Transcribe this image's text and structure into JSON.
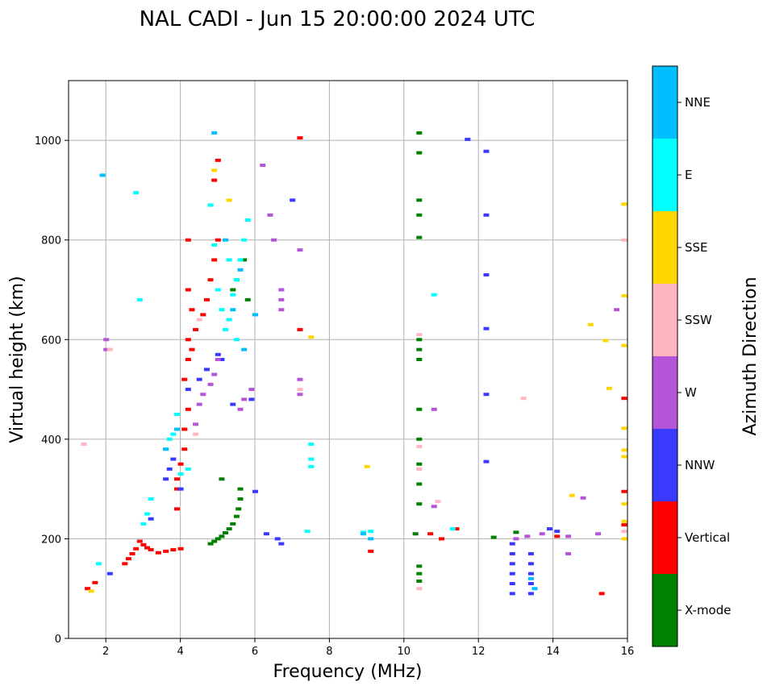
{
  "chart_data": {
    "type": "scatter",
    "title": "NAL CADI - Jun 15 20:00:00 2024 UTC",
    "xlabel": "Frequency (MHz)",
    "ylabel": "Virtual height (km)",
    "xlim": [
      1,
      16
    ],
    "ylim": [
      0,
      1120
    ],
    "xticks": [
      2,
      4,
      6,
      8,
      10,
      12,
      14,
      16
    ],
    "yticks": [
      0,
      200,
      400,
      600,
      800,
      1000
    ],
    "grid": true,
    "colorbar": {
      "label": "Azimuth Direction",
      "categories": [
        "X-mode",
        "Vertical",
        "NNW",
        "W",
        "SSW",
        "SSE",
        "E",
        "NNE"
      ],
      "colors": [
        "#008000",
        "#ff0000",
        "#3a3aff",
        "#b455d8",
        "#ffb6c1",
        "#ffd700",
        "#00ffff",
        "#00bfff"
      ]
    },
    "series": [
      {
        "name": "Vertical",
        "points": [
          [
            1.5,
            100
          ],
          [
            1.7,
            112
          ],
          [
            2.5,
            150
          ],
          [
            2.6,
            160
          ],
          [
            2.7,
            170
          ],
          [
            2.8,
            180
          ],
          [
            2.9,
            195
          ],
          [
            3.0,
            188
          ],
          [
            3.1,
            182
          ],
          [
            3.2,
            178
          ],
          [
            3.4,
            172
          ],
          [
            3.6,
            175
          ],
          [
            3.8,
            178
          ],
          [
            4.0,
            180
          ],
          [
            3.9,
            260
          ],
          [
            3.9,
            300
          ],
          [
            3.9,
            320
          ],
          [
            4.0,
            350
          ],
          [
            4.1,
            380
          ],
          [
            4.1,
            420
          ],
          [
            4.2,
            460
          ],
          [
            4.1,
            520
          ],
          [
            4.2,
            560
          ],
          [
            4.2,
            600
          ],
          [
            4.3,
            580
          ],
          [
            4.4,
            620
          ],
          [
            4.3,
            660
          ],
          [
            4.2,
            700
          ],
          [
            4.2,
            800
          ],
          [
            4.6,
            650
          ],
          [
            4.7,
            680
          ],
          [
            4.8,
            720
          ],
          [
            4.9,
            760
          ],
          [
            5.0,
            800
          ],
          [
            4.8,
            870
          ],
          [
            4.9,
            920
          ],
          [
            5.0,
            960
          ],
          [
            7.2,
            1005
          ],
          [
            7.2,
            620
          ],
          [
            9.1,
            175
          ],
          [
            10.7,
            210
          ],
          [
            11.4,
            220
          ],
          [
            11.0,
            200
          ],
          [
            14.1,
            205
          ],
          [
            15.3,
            90
          ],
          [
            15.9,
            295
          ],
          [
            15.9,
            482
          ],
          [
            15.9,
            228
          ]
        ]
      },
      {
        "name": "X-mode",
        "points": [
          [
            4.8,
            190
          ],
          [
            4.9,
            195
          ],
          [
            5.0,
            200
          ],
          [
            5.1,
            205
          ],
          [
            5.2,
            212
          ],
          [
            5.3,
            220
          ],
          [
            5.4,
            230
          ],
          [
            5.5,
            245
          ],
          [
            5.55,
            260
          ],
          [
            5.6,
            280
          ],
          [
            5.6,
            300
          ],
          [
            5.1,
            320
          ],
          [
            5.4,
            700
          ],
          [
            5.5,
            720
          ],
          [
            5.7,
            760
          ],
          [
            5.8,
            680
          ],
          [
            10.4,
            1015
          ],
          [
            10.4,
            975
          ],
          [
            10.4,
            880
          ],
          [
            10.4,
            850
          ],
          [
            10.4,
            805
          ],
          [
            10.4,
            600
          ],
          [
            10.4,
            580
          ],
          [
            10.4,
            560
          ],
          [
            10.4,
            460
          ],
          [
            10.4,
            400
          ],
          [
            10.4,
            350
          ],
          [
            10.4,
            310
          ],
          [
            10.4,
            270
          ],
          [
            10.3,
            210
          ],
          [
            10.4,
            145
          ],
          [
            10.4,
            130
          ],
          [
            10.4,
            115
          ],
          [
            12.4,
            203
          ],
          [
            13.0,
            213
          ]
        ]
      },
      {
        "name": "NNW",
        "points": [
          [
            2.1,
            130
          ],
          [
            3.2,
            240
          ],
          [
            3.6,
            320
          ],
          [
            3.7,
            340
          ],
          [
            3.8,
            360
          ],
          [
            4.0,
            300
          ],
          [
            4.2,
            500
          ],
          [
            4.5,
            520
          ],
          [
            4.7,
            540
          ],
          [
            5.0,
            570
          ],
          [
            5.1,
            560
          ],
          [
            5.4,
            470
          ],
          [
            5.9,
            480
          ],
          [
            6.0,
            295
          ],
          [
            6.3,
            210
          ],
          [
            6.6,
            200
          ],
          [
            6.7,
            190
          ],
          [
            7.0,
            880
          ],
          [
            11.7,
            1002
          ],
          [
            12.2,
            978
          ],
          [
            12.2,
            850
          ],
          [
            12.2,
            730
          ],
          [
            12.2,
            622
          ],
          [
            12.2,
            490
          ],
          [
            12.2,
            355
          ],
          [
            12.9,
            90
          ],
          [
            12.9,
            110
          ],
          [
            12.9,
            130
          ],
          [
            12.9,
            150
          ],
          [
            12.9,
            170
          ],
          [
            12.9,
            190
          ],
          [
            13.4,
            90
          ],
          [
            13.4,
            110
          ],
          [
            13.4,
            130
          ],
          [
            13.4,
            150
          ],
          [
            13.4,
            170
          ],
          [
            13.9,
            220
          ],
          [
            14.1,
            215
          ]
        ]
      },
      {
        "name": "W",
        "points": [
          [
            2.0,
            600
          ],
          [
            2.0,
            580
          ],
          [
            4.4,
            430
          ],
          [
            4.5,
            470
          ],
          [
            4.6,
            490
          ],
          [
            4.8,
            510
          ],
          [
            4.9,
            530
          ],
          [
            5.0,
            560
          ],
          [
            5.6,
            460
          ],
          [
            5.7,
            480
          ],
          [
            5.9,
            500
          ],
          [
            6.2,
            950
          ],
          [
            6.4,
            850
          ],
          [
            6.5,
            800
          ],
          [
            6.7,
            700
          ],
          [
            6.7,
            680
          ],
          [
            6.7,
            660
          ],
          [
            7.2,
            780
          ],
          [
            7.2,
            520
          ],
          [
            7.2,
            490
          ],
          [
            10.8,
            460
          ],
          [
            10.8,
            265
          ],
          [
            13.0,
            200
          ],
          [
            13.3,
            205
          ],
          [
            13.7,
            210
          ],
          [
            14.4,
            205
          ],
          [
            14.4,
            170
          ],
          [
            14.8,
            282
          ],
          [
            15.2,
            210
          ],
          [
            15.7,
            660
          ]
        ]
      },
      {
        "name": "SSW",
        "points": [
          [
            1.4,
            390
          ],
          [
            2.1,
            580
          ],
          [
            4.4,
            410
          ],
          [
            4.5,
            640
          ],
          [
            7.2,
            500
          ],
          [
            10.4,
            610
          ],
          [
            10.4,
            385
          ],
          [
            10.4,
            340
          ],
          [
            10.4,
            100
          ],
          [
            10.9,
            275
          ],
          [
            13.2,
            482
          ],
          [
            15.9,
            800
          ],
          [
            15.9,
            215
          ]
        ]
      },
      {
        "name": "SSE",
        "points": [
          [
            1.6,
            95
          ],
          [
            4.9,
            940
          ],
          [
            5.3,
            880
          ],
          [
            7.5,
            605
          ],
          [
            9.0,
            345
          ],
          [
            14.5,
            287
          ],
          [
            15.0,
            630
          ],
          [
            15.4,
            598
          ],
          [
            15.5,
            502
          ],
          [
            15.9,
            872
          ],
          [
            15.9,
            688
          ],
          [
            15.9,
            588
          ],
          [
            15.9,
            422
          ],
          [
            15.9,
            378
          ],
          [
            15.9,
            365
          ],
          [
            15.9,
            270
          ],
          [
            15.9,
            235
          ],
          [
            15.9,
            200
          ]
        ]
      },
      {
        "name": "E",
        "points": [
          [
            1.9,
            930
          ],
          [
            1.8,
            150
          ],
          [
            2.8,
            895
          ],
          [
            2.9,
            680
          ],
          [
            3.0,
            230
          ],
          [
            3.1,
            250
          ],
          [
            3.2,
            280
          ],
          [
            3.6,
            380
          ],
          [
            3.7,
            400
          ],
          [
            3.8,
            410
          ],
          [
            3.9,
            450
          ],
          [
            4.0,
            330
          ],
          [
            4.2,
            340
          ],
          [
            4.8,
            870
          ],
          [
            4.9,
            790
          ],
          [
            5.0,
            700
          ],
          [
            5.1,
            660
          ],
          [
            5.2,
            620
          ],
          [
            5.3,
            640
          ],
          [
            5.4,
            690
          ],
          [
            5.5,
            720
          ],
          [
            5.6,
            760
          ],
          [
            5.7,
            800
          ],
          [
            5.8,
            840
          ],
          [
            5.3,
            760
          ],
          [
            5.5,
            600
          ],
          [
            7.4,
            215
          ],
          [
            7.5,
            390
          ],
          [
            7.5,
            360
          ],
          [
            7.5,
            345
          ],
          [
            8.9,
            213
          ],
          [
            9.1,
            215
          ],
          [
            10.8,
            690
          ],
          [
            11.3,
            220
          ]
        ]
      },
      {
        "name": "NNE",
        "points": [
          [
            1.9,
            930
          ],
          [
            3.6,
            380
          ],
          [
            3.9,
            420
          ],
          [
            4.9,
            1015
          ],
          [
            5.2,
            800
          ],
          [
            5.6,
            740
          ],
          [
            5.4,
            660
          ],
          [
            5.7,
            580
          ],
          [
            6.0,
            650
          ],
          [
            8.9,
            210
          ],
          [
            9.1,
            200
          ],
          [
            13.4,
            120
          ],
          [
            13.5,
            100
          ]
        ]
      }
    ]
  }
}
